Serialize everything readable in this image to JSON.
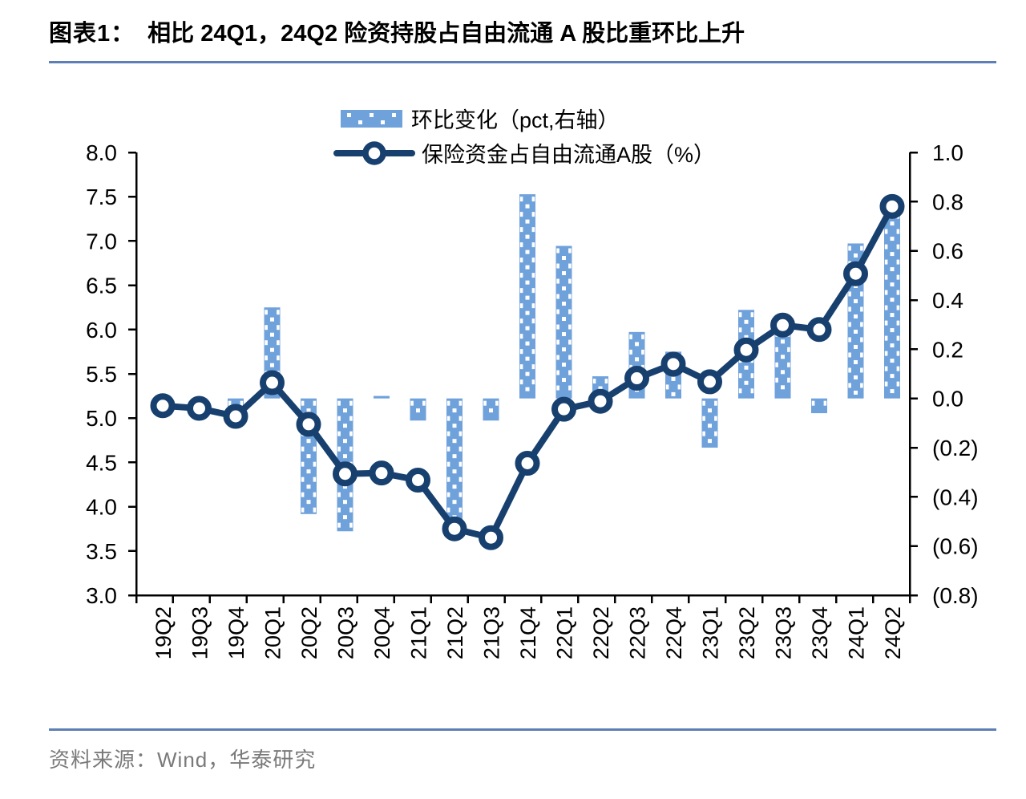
{
  "page": {
    "title_label": "图表1：",
    "title_text": "相比 24Q1，24Q2 险资持股占自由流通 A 股比重环比上升",
    "source_text": "资料来源：Wind，华泰研究"
  },
  "colors": {
    "background": "#FFFFFF",
    "bar_fill": "#6FA1DB",
    "bar_dot": "#FFFFFF",
    "line": "#17406F",
    "marker_fill": "#FFFFFF",
    "axis": "#000000",
    "rule": "#5D7FB5",
    "source_text": "#7A7A7A"
  },
  "chart_data": {
    "type": "bar+line",
    "title": "相比 24Q1，24Q2 险资持股占自由流通 A 股比重环比上升",
    "categories": [
      "19Q2",
      "19Q3",
      "19Q4",
      "20Q1",
      "20Q2",
      "20Q3",
      "20Q4",
      "21Q1",
      "21Q2",
      "21Q3",
      "21Q4",
      "22Q1",
      "22Q2",
      "22Q3",
      "22Q4",
      "23Q1",
      "23Q2",
      "23Q3",
      "23Q4",
      "24Q1",
      "24Q2"
    ],
    "series": [
      {
        "name": "环比变化（pct,右轴）",
        "type": "bar",
        "axis": "right",
        "values": [
          null,
          -0.03,
          -0.09,
          0.37,
          -0.47,
          -0.54,
          0.01,
          -0.09,
          -0.53,
          -0.09,
          0.83,
          0.62,
          0.09,
          0.27,
          0.19,
          -0.2,
          0.36,
          0.28,
          -0.06,
          0.63,
          0.76
        ]
      },
      {
        "name": "保险资金占自由流通A股（%）",
        "type": "line",
        "axis": "left",
        "values": [
          5.14,
          5.11,
          5.02,
          5.4,
          4.93,
          4.37,
          4.38,
          4.3,
          3.75,
          3.65,
          4.49,
          5.1,
          5.19,
          5.45,
          5.61,
          5.41,
          5.77,
          6.05,
          6.0,
          6.63,
          7.39
        ]
      }
    ],
    "left_axis": {
      "min": 3.0,
      "max": 8.0,
      "step": 0.5,
      "tick_labels": [
        "8.0",
        "7.5",
        "7.0",
        "6.5",
        "6.0",
        "5.5",
        "5.0",
        "4.5",
        "4.0",
        "3.5",
        "3.0"
      ]
    },
    "right_axis": {
      "min": -0.8,
      "max": 1.0,
      "step": 0.2,
      "tick_labels": [
        "1.0",
        "0.8",
        "0.6",
        "0.4",
        "0.2",
        "0.0",
        "(0.2)",
        "(0.4)",
        "(0.6)",
        "(0.8)"
      ],
      "negative_format": "parentheses"
    },
    "legend_position": "top-center",
    "grid": false
  }
}
